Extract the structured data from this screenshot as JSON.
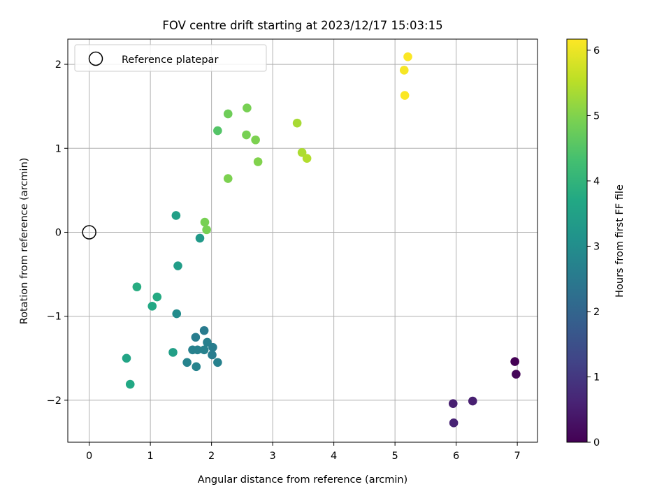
{
  "chart_data": {
    "type": "scatter",
    "title": "FOV centre drift starting at 2023/12/17 15:03:15",
    "xlabel": "Angular distance from reference (arcmin)",
    "ylabel": "Rotation from reference (arcmin)",
    "xlim": [
      -0.35,
      7.33
    ],
    "ylim": [
      -2.5,
      2.3
    ],
    "xticks": [
      0,
      1,
      2,
      3,
      4,
      5,
      6,
      7
    ],
    "yticks": [
      2,
      1,
      0,
      -1,
      -2
    ],
    "ytick_labels": [
      "2",
      "1",
      "0",
      "−1",
      "−2"
    ],
    "grid": true,
    "legend": {
      "position": "top-left",
      "entries": [
        "Reference platepar"
      ]
    },
    "reference_point": {
      "x": 0,
      "y": 0,
      "marker": "open-circle"
    },
    "colorbar": {
      "label": "Hours from first FF file",
      "range": [
        0,
        6.17
      ],
      "ticks": [
        0,
        1,
        2,
        3,
        4,
        5,
        6
      ],
      "colormap": "viridis"
    },
    "points": [
      {
        "x": 6.96,
        "y": -1.54,
        "hours": 0.0
      },
      {
        "x": 6.98,
        "y": -1.69,
        "hours": 0.1
      },
      {
        "x": 5.95,
        "y": -2.04,
        "hours": 0.55
      },
      {
        "x": 6.27,
        "y": -2.01,
        "hours": 0.55
      },
      {
        "x": 5.96,
        "y": -2.27,
        "hours": 0.6
      },
      {
        "x": 1.88,
        "y": -1.17,
        "hours": 2.55
      },
      {
        "x": 1.74,
        "y": -1.25,
        "hours": 2.6
      },
      {
        "x": 1.93,
        "y": -1.31,
        "hours": 2.65
      },
      {
        "x": 2.02,
        "y": -1.37,
        "hours": 2.6
      },
      {
        "x": 1.69,
        "y": -1.4,
        "hours": 2.7
      },
      {
        "x": 1.77,
        "y": -1.4,
        "hours": 2.7
      },
      {
        "x": 1.88,
        "y": -1.4,
        "hours": 2.7
      },
      {
        "x": 2.01,
        "y": -1.46,
        "hours": 2.6
      },
      {
        "x": 1.6,
        "y": -1.55,
        "hours": 2.75
      },
      {
        "x": 2.1,
        "y": -1.55,
        "hours": 2.7
      },
      {
        "x": 1.75,
        "y": -1.6,
        "hours": 2.75
      },
      {
        "x": 1.43,
        "y": -0.97,
        "hours": 2.95
      },
      {
        "x": 1.81,
        "y": -0.07,
        "hours": 3.3
      },
      {
        "x": 1.45,
        "y": -0.4,
        "hours": 3.4
      },
      {
        "x": 1.37,
        "y": -1.43,
        "hours": 3.45
      },
      {
        "x": 1.42,
        "y": 0.2,
        "hours": 3.5
      },
      {
        "x": 0.61,
        "y": -1.5,
        "hours": 3.6
      },
      {
        "x": 0.67,
        "y": -1.81,
        "hours": 3.7
      },
      {
        "x": 1.03,
        "y": -0.88,
        "hours": 3.7
      },
      {
        "x": 1.11,
        "y": -0.77,
        "hours": 3.75
      },
      {
        "x": 0.78,
        "y": -0.65,
        "hours": 3.8
      },
      {
        "x": 1.89,
        "y": 0.12,
        "hours": 4.9
      },
      {
        "x": 1.92,
        "y": 0.03,
        "hours": 4.9
      },
      {
        "x": 2.27,
        "y": 0.64,
        "hours": 4.95
      },
      {
        "x": 2.1,
        "y": 1.21,
        "hours": 4.5
      },
      {
        "x": 2.27,
        "y": 1.41,
        "hours": 4.8
      },
      {
        "x": 2.58,
        "y": 1.48,
        "hours": 4.9
      },
      {
        "x": 2.57,
        "y": 1.16,
        "hours": 4.9
      },
      {
        "x": 2.72,
        "y": 1.1,
        "hours": 4.95
      },
      {
        "x": 2.76,
        "y": 0.84,
        "hours": 5.0
      },
      {
        "x": 3.4,
        "y": 1.3,
        "hours": 5.35
      },
      {
        "x": 3.48,
        "y": 0.95,
        "hours": 5.4
      },
      {
        "x": 3.56,
        "y": 0.88,
        "hours": 5.45
      },
      {
        "x": 5.15,
        "y": 1.93,
        "hours": 6.1
      },
      {
        "x": 5.21,
        "y": 2.09,
        "hours": 6.15
      },
      {
        "x": 5.16,
        "y": 1.63,
        "hours": 6.15
      }
    ]
  }
}
